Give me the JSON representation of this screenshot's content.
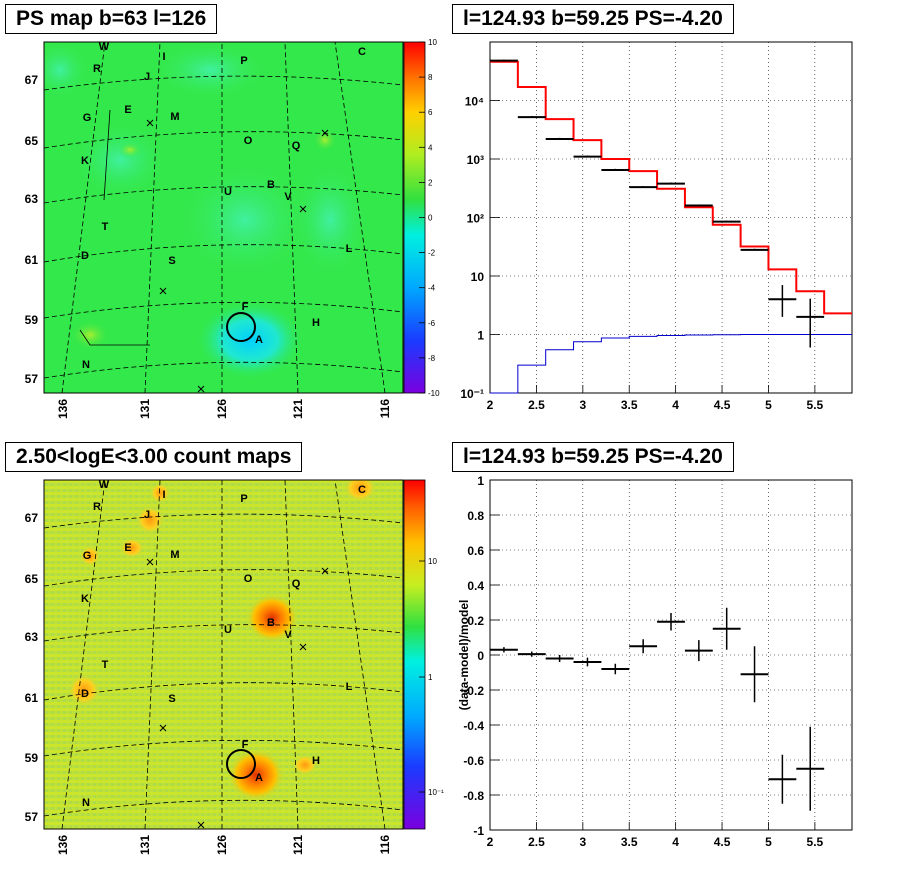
{
  "panels": {
    "ps_map": {
      "title": "PS map b=63 l=126",
      "lat_ticks": [
        "67",
        "65",
        "63",
        "61",
        "59",
        "57"
      ],
      "lon_ticks": [
        "136",
        "131",
        "126",
        "121",
        "116"
      ],
      "colorbar_ticks": [
        "10",
        "8",
        "6",
        "4",
        "2",
        "0",
        "-2",
        "-4",
        "-6",
        "-8",
        "-10"
      ],
      "colorbar_range": [
        -10,
        10
      ],
      "background_color": "#33e84a"
    },
    "spectrum": {
      "title": "l=124.93 b=59.25 PS=-4.20",
      "x_ticks": [
        "2",
        "2.5",
        "3",
        "3.5",
        "4",
        "4.5",
        "5",
        "5.5"
      ],
      "y_ticks": [
        "10⁻¹",
        "1",
        "10",
        "10²",
        "10³",
        "10⁴"
      ],
      "y_scale": "log"
    },
    "count_map": {
      "title": "2.50<logE<3.00 count maps",
      "lat_ticks": [
        "67",
        "65",
        "63",
        "61",
        "59",
        "57"
      ],
      "lon_ticks": [
        "136",
        "131",
        "126",
        "121",
        "116"
      ],
      "colorbar_ticks": [
        "10",
        "1",
        "10⁻¹"
      ],
      "colorbar_scale": "log",
      "background_color": "#bde03a"
    },
    "residual": {
      "title": "l=124.93 b=59.25 PS=-4.20",
      "ylabel": "(data-model)/model",
      "x_ticks": [
        "2",
        "2.5",
        "3",
        "3.5",
        "4",
        "4.5",
        "5",
        "5.5"
      ],
      "y_ticks": [
        "1",
        "0.8",
        "0.6",
        "0.4",
        "0.2",
        "0",
        "-0.2",
        "-0.4",
        "-0.6",
        "-0.8",
        "-1"
      ]
    }
  },
  "sources": [
    "W",
    "I",
    "C",
    "R",
    "J",
    "P",
    "E",
    "M",
    "G",
    "O",
    "Q",
    "K",
    "U",
    "B",
    "V",
    "T",
    "L",
    "D",
    "S",
    "F",
    "A",
    "H",
    "N"
  ],
  "colors": {
    "data": "#000000",
    "model": "#ff0000",
    "ps_model": "#0000cc",
    "circle": "#000000"
  },
  "chart_data": [
    {
      "type": "heatmap",
      "title": "PS map b=63 l=126",
      "xlabel": "",
      "ylabel": "",
      "x_ticks": [
        136,
        131,
        126,
        121,
        116
      ],
      "y_ticks": [
        67,
        65,
        63,
        61,
        59,
        57
      ],
      "z_range": [
        -10,
        10
      ],
      "target": {
        "l": 124.93,
        "b": 59.25,
        "PS": -4.2
      }
    },
    {
      "type": "line",
      "title": "l=124.93 b=59.25 PS=-4.20",
      "y_scale": "log",
      "xlim": [
        2,
        5.9
      ],
      "ylim": [
        0.1,
        100000
      ],
      "series": [
        {
          "name": "",
          "kind": "data",
          "x": [
            2.15,
            2.45,
            2.75,
            3.05,
            3.35,
            3.65,
            3.95,
            4.25,
            4.55,
            4.85,
            5.15,
            5.45
          ],
          "values": [
            48000,
            5200,
            2200,
            1100,
            650,
            330,
            380,
            160,
            85,
            28,
            4,
            2
          ]
        },
        {
          "name": "",
          "kind": "model",
          "x": [
            2.0,
            2.3,
            2.6,
            2.9,
            3.2,
            3.5,
            3.8,
            4.1,
            4.4,
            4.7,
            5.0,
            5.3,
            5.6
          ],
          "values": [
            46000,
            17000,
            4800,
            2100,
            1000,
            620,
            310,
            150,
            75,
            32,
            13,
            5.5,
            2.3
          ]
        },
        {
          "name": "",
          "kind": "ps_model",
          "x": [
            2.0,
            2.3,
            2.6,
            2.9,
            3.2,
            3.5,
            3.8,
            4.1,
            4.4,
            4.7,
            5.0,
            5.3,
            5.6
          ],
          "values": [
            0.09,
            0.3,
            0.55,
            0.75,
            0.87,
            0.93,
            0.96,
            0.98,
            0.99,
            1.0,
            1.0,
            1.0,
            1.0
          ]
        }
      ]
    },
    {
      "type": "heatmap",
      "title": "2.50<logE<3.00 count maps",
      "xlabel": "",
      "ylabel": "",
      "x_ticks": [
        136,
        131,
        126,
        121,
        116
      ],
      "y_ticks": [
        67,
        65,
        63,
        61,
        59,
        57
      ],
      "z_scale": "log"
    },
    {
      "type": "scatter",
      "title": "l=124.93 b=59.25 PS=-4.20",
      "ylabel": "(data-model)/model",
      "xlim": [
        2,
        5.9
      ],
      "ylim": [
        -1,
        1
      ],
      "series": [
        {
          "name": "",
          "x": [
            2.15,
            2.45,
            2.75,
            3.05,
            3.35,
            3.65,
            3.95,
            4.25,
            4.55,
            4.85,
            5.15,
            5.45
          ],
          "values": [
            0.03,
            0.005,
            -0.02,
            -0.04,
            -0.08,
            0.05,
            0.19,
            0.025,
            0.15,
            -0.11,
            -0.71,
            -0.65
          ],
          "errors": [
            0.015,
            0.015,
            0.02,
            0.025,
            0.03,
            0.04,
            0.05,
            0.06,
            0.12,
            0.16,
            0.14,
            0.24
          ]
        }
      ]
    }
  ]
}
